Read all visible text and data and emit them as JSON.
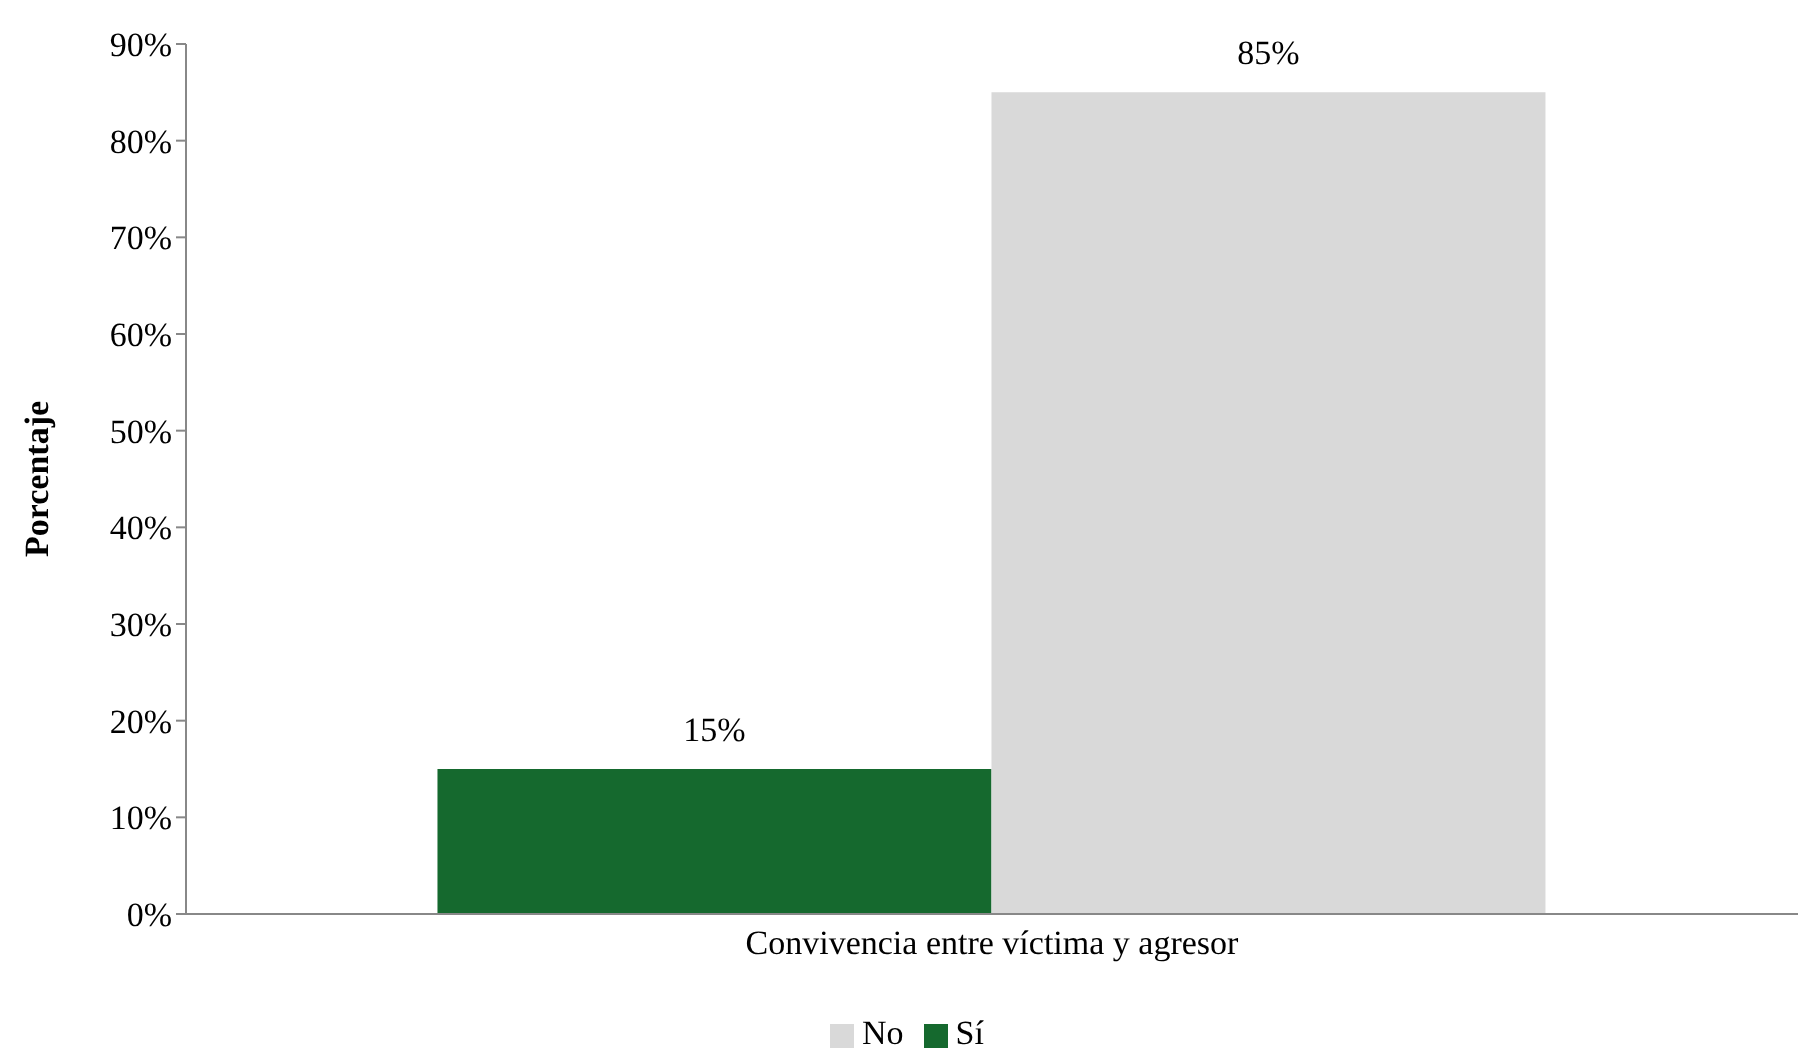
{
  "chart_data": {
    "type": "bar",
    "ylabel": "Porcentaje",
    "categories": [
      "Convivencia entre víctima y agresor"
    ],
    "series": [
      {
        "name": "Sí",
        "color": "#15692e",
        "values": [
          15
        ],
        "value_labels": [
          "15%"
        ]
      },
      {
        "name": "No",
        "color": "#d9d9d9",
        "values": [
          85
        ],
        "value_labels": [
          "85%"
        ]
      }
    ],
    "ylim": [
      0,
      90
    ],
    "yticks": [
      {
        "value": 0,
        "label": "0%"
      },
      {
        "value": 10,
        "label": "10%"
      },
      {
        "value": 20,
        "label": "20%"
      },
      {
        "value": 30,
        "label": "30%"
      },
      {
        "value": 40,
        "label": "40%"
      },
      {
        "value": 50,
        "label": "50%"
      },
      {
        "value": 60,
        "label": "60%"
      },
      {
        "value": 70,
        "label": "70%"
      },
      {
        "value": 80,
        "label": "80%"
      },
      {
        "value": 90,
        "label": "90%"
      }
    ],
    "grid": false,
    "legend": "bottom"
  }
}
